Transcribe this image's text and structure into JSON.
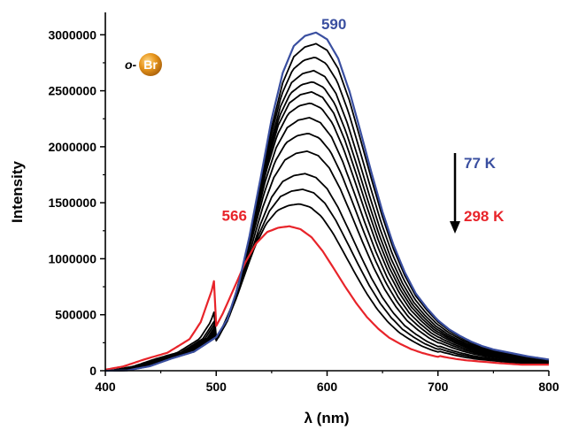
{
  "chart_data": {
    "type": "line",
    "xlabel": "λ (nm)",
    "ylabel": "Intensity",
    "xlim": [
      400,
      800
    ],
    "ylim": [
      0,
      3200000
    ],
    "x_ticks": [
      400,
      500,
      600,
      700,
      800
    ],
    "x_tick_labels": [
      "400",
      "500",
      "600",
      "700",
      "800"
    ],
    "y_ticks": [
      0,
      500000,
      1000000,
      1500000,
      2000000,
      2500000,
      3000000
    ],
    "y_tick_labels": [
      "0",
      "500000",
      "1000000",
      "1500000",
      "2000000",
      "2500000",
      "3000000"
    ],
    "grid": false,
    "colors": {
      "curve_77K": "#3a4fa0",
      "curve_298K": "#e8242a",
      "intermediate": "#000000",
      "badge_ball": "#e8961c"
    },
    "spectrum_points_x": [
      400,
      420,
      440,
      460,
      480,
      500,
      510,
      520,
      530,
      540,
      550,
      560,
      570,
      580,
      590,
      600,
      610,
      620,
      630,
      640,
      650,
      660,
      670,
      680,
      690,
      700,
      710,
      720,
      730,
      740,
      750,
      760,
      770,
      780,
      790,
      800
    ],
    "spectrum_shape_77K_y": [
      0,
      3000,
      40000,
      110000,
      170000,
      300000,
      460000,
      760000,
      1200000,
      1720000,
      2250000,
      2660000,
      2900000,
      2990000,
      3020000,
      2960000,
      2790000,
      2500000,
      2140000,
      1770000,
      1420000,
      1120000,
      880000,
      690000,
      560000,
      450000,
      370000,
      310000,
      260000,
      220000,
      190000,
      170000,
      150000,
      130000,
      115000,
      100000
    ],
    "series": [
      {
        "peak_nm": 590,
        "peak_intensity": 3020000,
        "color": "#3a4fa0",
        "label": "77 K"
      },
      {
        "peak_nm": 590,
        "peak_intensity": 2920000,
        "color": "#000000"
      },
      {
        "peak_nm": 589,
        "peak_intensity": 2800000,
        "color": "#000000"
      },
      {
        "peak_nm": 588,
        "peak_intensity": 2680000,
        "color": "#000000"
      },
      {
        "peak_nm": 587,
        "peak_intensity": 2580000,
        "color": "#000000"
      },
      {
        "peak_nm": 586,
        "peak_intensity": 2490000,
        "color": "#000000"
      },
      {
        "peak_nm": 585,
        "peak_intensity": 2390000,
        "color": "#000000"
      },
      {
        "peak_nm": 584,
        "peak_intensity": 2260000,
        "color": "#000000"
      },
      {
        "peak_nm": 583,
        "peak_intensity": 2120000,
        "color": "#000000"
      },
      {
        "peak_nm": 582,
        "peak_intensity": 1960000,
        "color": "#000000"
      },
      {
        "peak_nm": 580,
        "peak_intensity": 1760000,
        "color": "#000000"
      },
      {
        "peak_nm": 578,
        "peak_intensity": 1620000,
        "color": "#000000"
      },
      {
        "peak_nm": 575,
        "peak_intensity": 1490000,
        "color": "#000000"
      },
      {
        "peak_nm": 566,
        "peak_intensity": 1290000,
        "color": "#e8242a",
        "label": "298 K"
      }
    ],
    "annotations": {
      "peak_77K": {
        "text": "590",
        "x": 590,
        "y": 3020000
      },
      "peak_298K": {
        "text": "566",
        "x": 566,
        "y": 1290000
      },
      "temp_high": "77 K",
      "temp_low": "298 K",
      "arrow": "down"
    },
    "badge": {
      "prefix": "o-",
      "symbol": "Br"
    }
  }
}
